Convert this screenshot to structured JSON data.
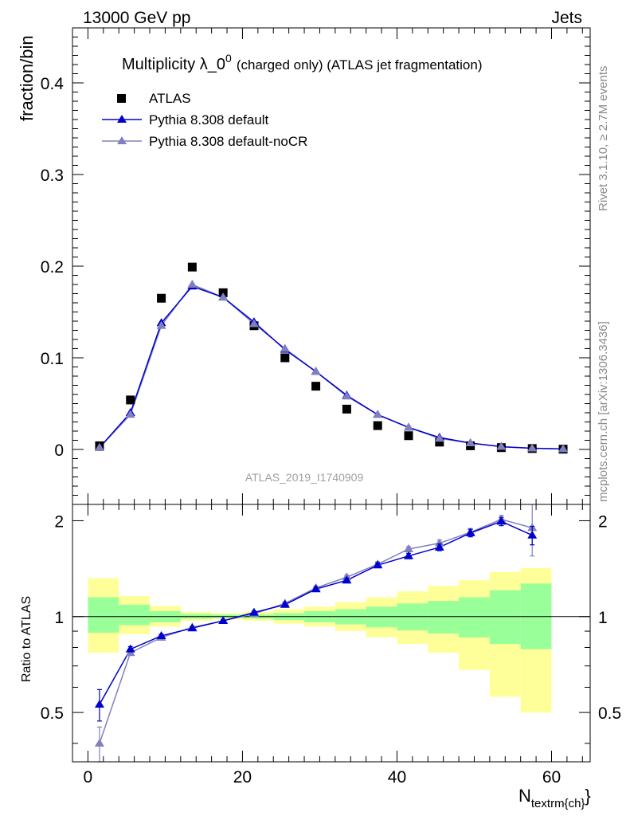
{
  "header": {
    "energy": "13000 GeV pp",
    "category": "Jets"
  },
  "side_labels": {
    "rivet": "Rivet 3.1.10, ≥ 2.7M events",
    "mcplots": "mcplots.cern.ch [arXiv:1306.3436]"
  },
  "chart_data": [
    {
      "type": "scatter",
      "title": "Multiplicity λ_0",
      "title_superscript": "0",
      "title_suffix": "(charged only) (ATLAS jet fragmentation)",
      "ylabel": "fraction/bin",
      "watermark": "ATLAS_2019_I1740909",
      "xlim": [
        -2,
        65
      ],
      "ylim": [
        -0.06,
        0.46
      ],
      "yticks": [
        "0",
        "0.1",
        "0.2",
        "0.3",
        "0.4"
      ],
      "x": [
        1.5,
        5.5,
        9.5,
        13.5,
        17.5,
        21.5,
        25.5,
        29.5,
        33.5,
        37.5,
        41.5,
        45.5,
        49.5,
        53.5,
        57.5,
        61.5
      ],
      "series": [
        {
          "name": "ATLAS",
          "color": "#000000",
          "marker": "square",
          "values": [
            0.004,
            0.054,
            0.165,
            0.199,
            0.171,
            0.135,
            0.1,
            0.069,
            0.044,
            0.026,
            0.015,
            0.008,
            0.004,
            0.002,
            0.001,
            0.0003
          ]
        },
        {
          "name": "Pythia 8.308 default",
          "color": "#0000cc",
          "marker": "triangle",
          "values": [
            0.002,
            0.04,
            0.138,
            0.178,
            0.166,
            0.139,
            0.109,
            0.085,
            0.059,
            0.038,
            0.024,
            0.013,
            0.007,
            0.003,
            0.0013,
            0.0005
          ]
        },
        {
          "name": "Pythia 8.308 default-noCR",
          "color": "#8080c0",
          "marker": "triangle",
          "values": [
            0.002,
            0.038,
            0.135,
            0.18,
            0.166,
            0.137,
            0.11,
            0.085,
            0.058,
            0.038,
            0.024,
            0.012,
            0.007,
            0.003,
            0.0013,
            0.0005
          ]
        }
      ]
    },
    {
      "type": "line",
      "ylabel": "Ratio to ATLAS",
      "xlabel": "N",
      "xlabel_sub": "textrm{ch}",
      "xlabel_suffix": "}",
      "xlim": [
        -2,
        65
      ],
      "ylim": [
        0.35,
        2.25
      ],
      "xticks": [
        "0",
        "20",
        "40",
        "60"
      ],
      "yticks": [
        "0.5",
        "1",
        "2"
      ],
      "bins": [
        [
          0,
          4
        ],
        [
          4,
          8
        ],
        [
          8,
          12
        ],
        [
          12,
          16
        ],
        [
          16,
          20
        ],
        [
          20,
          24
        ],
        [
          24,
          28
        ],
        [
          28,
          32
        ],
        [
          32,
          36
        ],
        [
          36,
          40
        ],
        [
          40,
          44
        ],
        [
          44,
          48
        ],
        [
          48,
          52
        ],
        [
          52,
          56
        ],
        [
          56,
          60
        ]
      ],
      "band_1sigma": [
        [
          0.89,
          1.15
        ],
        [
          0.94,
          1.09
        ],
        [
          0.96,
          1.04
        ],
        [
          0.985,
          1.02
        ],
        [
          0.99,
          1.015
        ],
        [
          0.985,
          1.015
        ],
        [
          0.975,
          1.025
        ],
        [
          0.96,
          1.04
        ],
        [
          0.945,
          1.055
        ],
        [
          0.925,
          1.075
        ],
        [
          0.905,
          1.1
        ],
        [
          0.885,
          1.12
        ],
        [
          0.86,
          1.15
        ],
        [
          0.82,
          1.21
        ],
        [
          0.79,
          1.27
        ]
      ],
      "band_2sigma": [
        [
          0.77,
          1.32
        ],
        [
          0.88,
          1.16
        ],
        [
          0.93,
          1.08
        ],
        [
          0.97,
          1.035
        ],
        [
          0.98,
          1.025
        ],
        [
          0.97,
          1.035
        ],
        [
          0.95,
          1.055
        ],
        [
          0.93,
          1.075
        ],
        [
          0.9,
          1.11
        ],
        [
          0.86,
          1.15
        ],
        [
          0.82,
          1.2
        ],
        [
          0.77,
          1.25
        ],
        [
          0.68,
          1.3
        ],
        [
          0.56,
          1.38
        ],
        [
          0.5,
          1.42
        ]
      ],
      "x": [
        1.5,
        5.5,
        9.5,
        13.5,
        17.5,
        21.5,
        25.5,
        29.5,
        33.5,
        37.5,
        41.5,
        45.5,
        49.5,
        53.5,
        57.5
      ],
      "series": [
        {
          "name": "Pythia 8.308 default",
          "color": "#0000cc",
          "values": [
            0.53,
            0.79,
            0.87,
            0.92,
            0.97,
            1.03,
            1.09,
            1.22,
            1.3,
            1.45,
            1.55,
            1.65,
            1.83,
            1.99,
            1.8
          ],
          "errors": [
            0.06,
            0.015,
            0.01,
            0.008,
            0.008,
            0.01,
            0.012,
            0.015,
            0.02,
            0.025,
            0.03,
            0.04,
            0.05,
            0.06,
            0.12
          ]
        },
        {
          "name": "Pythia 8.308 default-noCR",
          "color": "#8080c0",
          "values": [
            0.4,
            0.77,
            0.86,
            0.925,
            0.97,
            1.02,
            1.1,
            1.23,
            1.33,
            1.46,
            1.63,
            1.7,
            1.84,
            2.02,
            1.9
          ],
          "errors": [
            0.05,
            0.015,
            0.01,
            0.008,
            0.008,
            0.01,
            0.012,
            0.015,
            0.02,
            0.025,
            0.03,
            0.04,
            0.05,
            0.06,
            0.35
          ]
        }
      ]
    }
  ]
}
